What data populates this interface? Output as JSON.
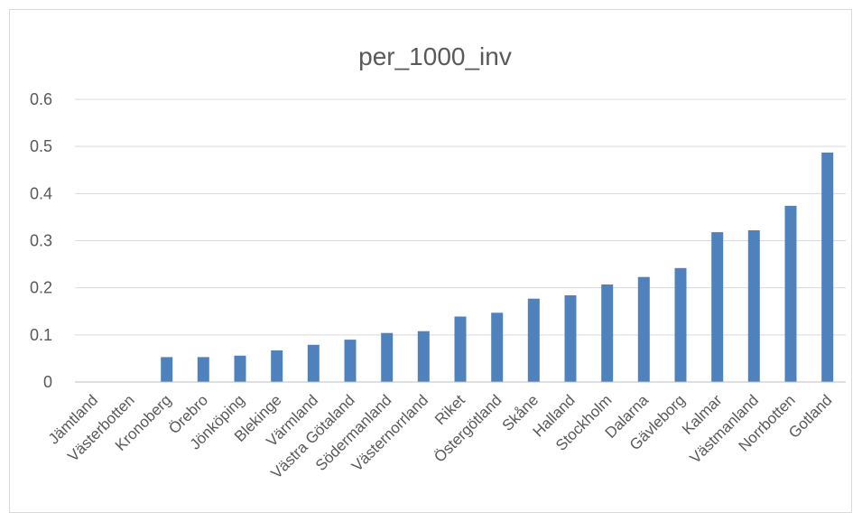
{
  "chart_data": {
    "type": "bar",
    "title": "per_1000_inv",
    "xlabel": "",
    "ylabel": "",
    "ylim": [
      0,
      0.6
    ],
    "yticks": [
      "0",
      "0.1",
      "0.2",
      "0.3",
      "0.4",
      "0.5",
      "0.6"
    ],
    "grid": true,
    "legend": "none",
    "categories": [
      "Jämtland",
      "Västerbotten",
      "Kronoberg",
      "Örebro",
      "Jönköping",
      "Blekinge",
      "Värmland",
      "Västra Götaland",
      "Södermanland",
      "Västernorrland",
      "Riket",
      "Östergötland",
      "Skåne",
      "Halland",
      "Stockholm",
      "Dalarna",
      "Gävleborg",
      "Kalmar",
      "Västmanland",
      "Norrbotten",
      "Gotland"
    ],
    "values": [
      0,
      0,
      0.053,
      0.053,
      0.056,
      0.067,
      0.079,
      0.09,
      0.104,
      0.108,
      0.139,
      0.147,
      0.177,
      0.184,
      0.207,
      0.223,
      0.242,
      0.318,
      0.322,
      0.374,
      0.487
    ],
    "colors": {
      "bar": "#4f81bd",
      "grid": "#d9d9d9",
      "axis": "#bfbfbf",
      "text": "#595959"
    }
  }
}
